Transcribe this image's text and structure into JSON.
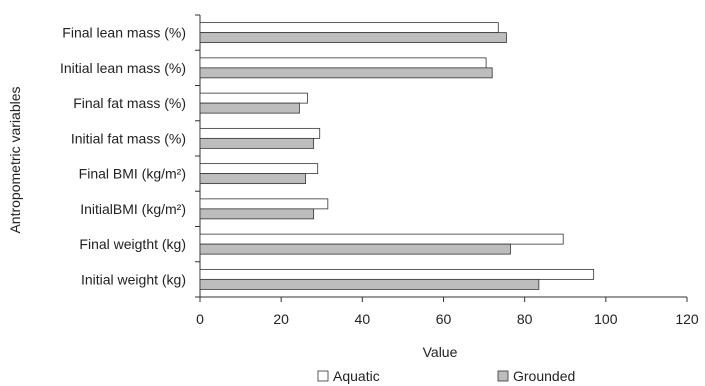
{
  "chart_data": {
    "type": "bar",
    "orientation": "horizontal",
    "title": "",
    "xlabel": "Value",
    "ylabel": "Antropometric variables",
    "xlim": [
      0,
      120
    ],
    "xticks": [
      0,
      20,
      40,
      60,
      80,
      100,
      120
    ],
    "grid": false,
    "legend_position": "bottom",
    "categories": [
      "Final lean mass (%)",
      "Initial lean mass (%)",
      "Final fat mass (%)",
      "Initial fat mass (%)",
      "Final BMI (kg/m²)",
      "InitialBMI  (kg/m²)",
      "Final weigtht (kg)",
      "Initial weight (kg)"
    ],
    "series": [
      {
        "name": "Aquatic",
        "color": "#ffffff",
        "values": [
          73.5,
          70.5,
          26.5,
          29.5,
          29,
          31.5,
          89.5,
          97
        ]
      },
      {
        "name": "Grounded",
        "color": "#bdbdbd",
        "values": [
          75.5,
          72,
          24.5,
          28,
          26,
          28,
          76.5,
          83.5
        ]
      }
    ]
  }
}
